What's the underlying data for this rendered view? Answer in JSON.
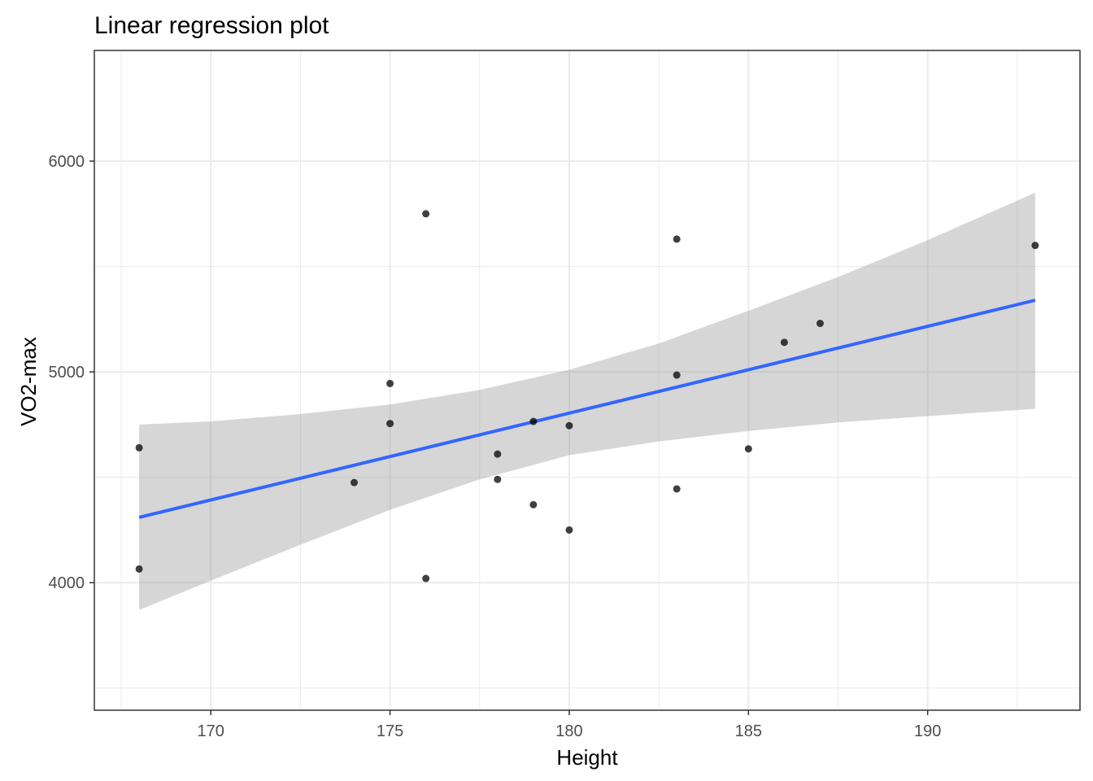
{
  "chart_data": {
    "type": "scatter",
    "title": "Linear regression plot",
    "xlabel": "Height",
    "ylabel": "VO2-max",
    "xlim": [
      166.75,
      194.25
    ],
    "ylim": [
      3395,
      6525
    ],
    "x_ticks": [
      170,
      175,
      180,
      185,
      190
    ],
    "x_tick_labels": [
      "170",
      "175",
      "180",
      "185",
      "190"
    ],
    "x_minor_ticks": [
      167.5,
      172.5,
      177.5,
      182.5,
      187.5,
      192.5
    ],
    "y_ticks": [
      4000,
      5000,
      6000
    ],
    "y_tick_labels": [
      "4000",
      "5000",
      "6000"
    ],
    "y_minor_ticks": [
      3500,
      4500,
      5500
    ],
    "grid": true,
    "points": [
      {
        "x": 168,
        "y": 4640
      },
      {
        "x": 168,
        "y": 4065
      },
      {
        "x": 174,
        "y": 4475
      },
      {
        "x": 175,
        "y": 4945
      },
      {
        "x": 175,
        "y": 4755
      },
      {
        "x": 176,
        "y": 5750
      },
      {
        "x": 176,
        "y": 4020
      },
      {
        "x": 178,
        "y": 4610
      },
      {
        "x": 178,
        "y": 4490
      },
      {
        "x": 179,
        "y": 4765
      },
      {
        "x": 179,
        "y": 4370
      },
      {
        "x": 180,
        "y": 4745
      },
      {
        "x": 180,
        "y": 4250
      },
      {
        "x": 183,
        "y": 5630
      },
      {
        "x": 183,
        "y": 4985
      },
      {
        "x": 183,
        "y": 4445
      },
      {
        "x": 185,
        "y": 4635
      },
      {
        "x": 186,
        "y": 5140
      },
      {
        "x": 187,
        "y": 5230
      },
      {
        "x": 193,
        "y": 5600
      }
    ],
    "regression": {
      "x": [
        168,
        193
      ],
      "y": [
        4310,
        5340
      ]
    },
    "confidence_band": {
      "x": [
        168,
        170,
        172.5,
        175,
        177.5,
        180,
        182.5,
        185,
        187.5,
        190,
        193
      ],
      "lower": [
        3870,
        4010,
        4180,
        4345,
        4490,
        4605,
        4670,
        4720,
        4760,
        4790,
        4825
      ],
      "upper": [
        4750,
        4765,
        4800,
        4845,
        4915,
        5010,
        5135,
        5290,
        5450,
        5625,
        5850
      ]
    },
    "colors": {
      "point": "#000000",
      "line": "#3366ff",
      "band": "#999999",
      "grid": "#ebebeb",
      "panel_border": "#333333"
    }
  }
}
